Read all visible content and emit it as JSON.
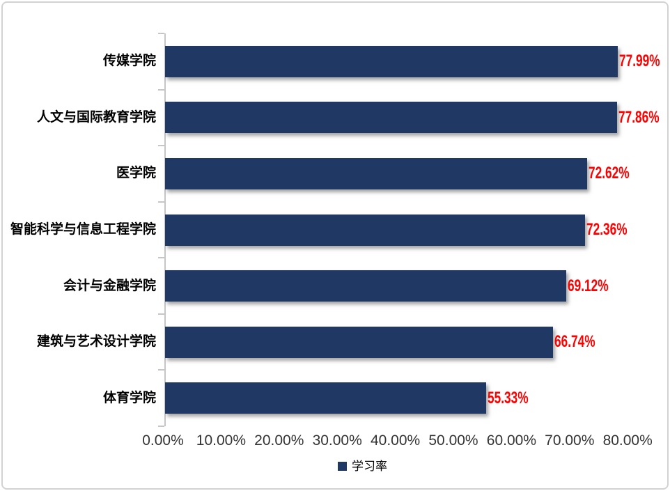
{
  "chart_data": {
    "type": "bar",
    "orientation": "horizontal",
    "title": "",
    "categories": [
      "传媒学院",
      "人文与国际教育学院",
      "医学院",
      "智能科学与信息工程学院",
      "会计与金融学院",
      "建筑与艺术设计学院",
      "体育学院"
    ],
    "series": [
      {
        "name": "学习率",
        "values": [
          77.99,
          77.86,
          72.62,
          72.36,
          69.12,
          66.74,
          55.33
        ]
      }
    ],
    "value_labels": [
      "77.99%",
      "77.86%",
      "72.62%",
      "72.36%",
      "69.12%",
      "66.74%",
      "55.33%"
    ],
    "x_tick_labels": [
      "0.00%",
      "10.00%",
      "20.00%",
      "30.00%",
      "40.00%",
      "50.00%",
      "60.00%",
      "70.00%",
      "80.00%"
    ],
    "xlim": [
      0,
      80
    ],
    "grid": false,
    "legend_position": "bottom",
    "legend": [
      {
        "label": "学习率",
        "color": "#1F3864"
      }
    ],
    "colors": {
      "bar": "#1F3864",
      "value_label": "#FF0000",
      "axis_line": "#C6C6C6",
      "category_label": "#000000",
      "x_tick_label": "#333333"
    }
  }
}
